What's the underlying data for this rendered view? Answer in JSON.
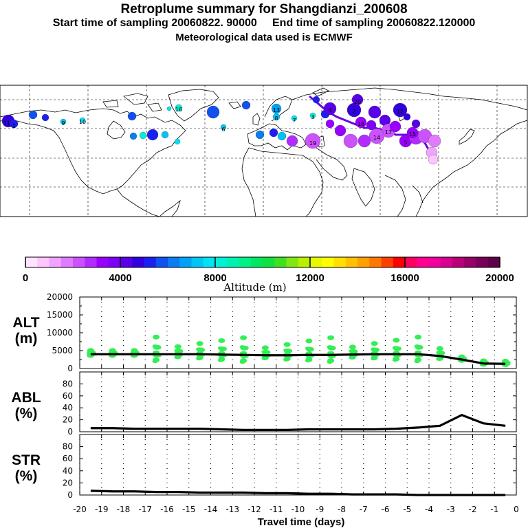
{
  "titles": {
    "line1": "Retroplume summary for Shangdianzi_200608",
    "line2_start": "Start time of sampling 20060822. 90000",
    "line2_end": "End time of sampling 20060822.120000",
    "line3": "Meteorological data used is ECMWF"
  },
  "map_labels": [
    "11",
    "1",
    "9",
    "10",
    "16",
    "6",
    "13",
    "8",
    "7",
    "3",
    "4",
    "2",
    "20",
    "19",
    "12",
    "14",
    "17",
    "5",
    "18",
    "15"
  ],
  "colorbar": {
    "tick_labels": [
      "0",
      "4000",
      "8000",
      "12000",
      "16000",
      "20000"
    ],
    "label": "Altitude (m)",
    "colors": [
      "#ffe3ff",
      "#ffc5ff",
      "#f0a3ff",
      "#e07bff",
      "#cc52ff",
      "#b22cff",
      "#9a00ff",
      "#7d00f8",
      "#5a00e8",
      "#3200e0",
      "#1a20f0",
      "#0f52f0",
      "#0a7df0",
      "#00a2f5",
      "#00c4f5",
      "#00e2f5",
      "#00f0d8",
      "#00f0b0",
      "#00f088",
      "#00e860",
      "#10e040",
      "#40e020",
      "#80e810",
      "#b8f000",
      "#e8f800",
      "#ffff00",
      "#ffe000",
      "#ffc000",
      "#ffa000",
      "#ff7800",
      "#ff4000",
      "#ff0000",
      "#ff0060",
      "#ff0090",
      "#f000a0",
      "#d80090",
      "#b80078",
      "#980068",
      "#780058",
      "#600048"
    ]
  },
  "chart_data": [
    {
      "type": "line",
      "name": "ALT",
      "ylabel_line1": "ALT",
      "ylabel_line2": "(m)",
      "ylim": [
        0,
        20000
      ],
      "yticks": [
        "20000",
        "15000",
        "10000",
        "5000",
        "0"
      ],
      "x": [
        -19.5,
        -18.5,
        -17.5,
        -16.5,
        -15.5,
        -14.5,
        -13.5,
        -12.5,
        -11.5,
        -10.5,
        -9.5,
        -8.5,
        -7.5,
        -6.5,
        -5.5,
        -4.5,
        -3.5,
        -2.5,
        -1.5,
        -0.5
      ],
      "series": [
        {
          "name": "median altitude",
          "values": [
            4000,
            4000,
            4000,
            4000,
            4000,
            4000,
            3900,
            3800,
            3700,
            3700,
            3800,
            3800,
            3900,
            4000,
            4000,
            4000,
            3500,
            2500,
            1400,
            1300
          ]
        }
      ],
      "scatter_color": "#33ee55"
    },
    {
      "type": "line",
      "name": "ABL",
      "ylabel_line1": "ABL",
      "ylabel_line2": "(%)",
      "ylim": [
        0,
        100
      ],
      "yticks": [
        "80",
        "60",
        "40",
        "20",
        "0"
      ],
      "x": [
        -19.5,
        -18.5,
        -17.5,
        -16.5,
        -15.5,
        -14.5,
        -13.5,
        -12.5,
        -11.5,
        -10.5,
        -9.5,
        -8.5,
        -7.5,
        -6.5,
        -5.5,
        -4.5,
        -3.5,
        -2.5,
        -1.5,
        -0.5
      ],
      "series": [
        {
          "name": "ABL fraction",
          "values": [
            6,
            6,
            5,
            5,
            5,
            5,
            4,
            3,
            3,
            3,
            4,
            4,
            4,
            4,
            5,
            7,
            10,
            28,
            14,
            10
          ]
        }
      ]
    },
    {
      "type": "line",
      "name": "STR",
      "ylabel_line1": "STR",
      "ylabel_line2": "(%)",
      "ylim": [
        0,
        100
      ],
      "yticks": [
        "80",
        "60",
        "40",
        "20",
        "0"
      ],
      "x": [
        -19.5,
        -18.5,
        -17.5,
        -16.5,
        -15.5,
        -14.5,
        -13.5,
        -12.5,
        -11.5,
        -10.5,
        -9.5,
        -8.5,
        -7.5,
        -6.5,
        -5.5,
        -4.5,
        -3.5,
        -2.5,
        -1.5,
        -0.5
      ],
      "series": [
        {
          "name": "stratospheric fraction",
          "values": [
            7,
            6,
            6,
            5,
            5,
            4,
            4,
            4,
            3,
            3,
            2,
            2,
            1,
            1,
            1,
            0,
            0,
            0,
            0,
            0
          ]
        }
      ]
    }
  ],
  "xaxis": {
    "ticks": [
      "-20",
      "-19",
      "-18",
      "-17",
      "-16",
      "-15",
      "-14",
      "-13",
      "-12",
      "-11",
      "-10",
      "-9",
      "-8",
      "-7",
      "-6",
      "-5",
      "-4",
      "-3",
      "-2",
      "-1",
      "0"
    ],
    "label": "Travel time (days)"
  }
}
